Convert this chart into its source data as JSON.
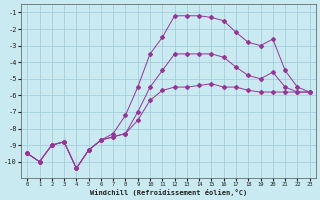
{
  "bg_color": "#c8eaf0",
  "grid_color": "#9ec8d8",
  "line_color": "#993399",
  "xlabel": "Windchill (Refroidissement éolien,°C)",
  "x_data": [
    0,
    1,
    2,
    3,
    4,
    5,
    6,
    7,
    8,
    9,
    10,
    11,
    12,
    13,
    14,
    15,
    16,
    17,
    18,
    19,
    20,
    21,
    22,
    23
  ],
  "line1": [
    -9.5,
    -10.0,
    -9.0,
    -8.8,
    -10.4,
    -9.3,
    -8.7,
    -8.5,
    -8.3,
    -7.5,
    -6.3,
    -5.7,
    -5.5,
    -5.5,
    -5.4,
    -5.3,
    -5.5,
    -5.5,
    -5.7,
    -5.8,
    -5.8,
    -5.8,
    -5.8,
    -5.8
  ],
  "line2": [
    -9.5,
    -10.0,
    -9.0,
    -8.8,
    -10.4,
    -9.3,
    -8.7,
    -8.5,
    -8.3,
    -7.0,
    -5.5,
    -4.5,
    -3.5,
    -3.5,
    -3.5,
    -3.5,
    -3.7,
    -4.3,
    -4.8,
    -5.0,
    -4.6,
    -5.5,
    -5.8,
    -5.8
  ],
  "line3": [
    -9.5,
    -10.0,
    -9.0,
    -8.8,
    -10.4,
    -9.3,
    -8.7,
    -8.3,
    -7.2,
    -5.5,
    -3.5,
    -2.5,
    -1.2,
    -1.2,
    -1.2,
    -1.3,
    -1.5,
    -2.2,
    -2.8,
    -3.0,
    -2.6,
    -4.5,
    -5.5,
    -5.8
  ],
  "ylim": [
    -11.0,
    -0.5
  ],
  "xlim": [
    -0.5,
    23.5
  ],
  "yticks": [
    -10,
    -9,
    -8,
    -7,
    -6,
    -5,
    -4,
    -3,
    -2,
    -1
  ],
  "xticks": [
    0,
    1,
    2,
    3,
    4,
    5,
    6,
    7,
    8,
    9,
    10,
    11,
    12,
    13,
    14,
    15,
    16,
    17,
    18,
    19,
    20,
    21,
    22,
    23
  ]
}
